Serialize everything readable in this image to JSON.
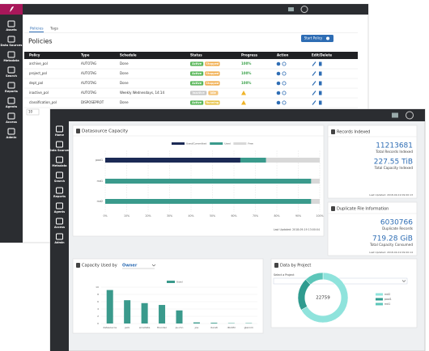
{
  "back": {
    "nav": [
      "Assets",
      "Data Sources",
      "Metadata",
      "Search",
      "Reports",
      "Agents",
      "Access",
      "Admin"
    ],
    "tabs": [
      "Policies",
      "Tags"
    ],
    "title": "Policies",
    "button": "Start Policy",
    "page_size": "10",
    "table": {
      "columns": [
        "Policy",
        "Type",
        "Schedule",
        "Status",
        "Progress",
        "Action",
        "Edit/Delete"
      ],
      "rows": [
        {
          "policy": "archive_pol",
          "type": "AUTOTAG",
          "schedule": "Done",
          "status": [
            {
              "text": "Active",
              "color": "#5cb85c"
            },
            {
              "text": "Stopped",
              "color": "#f0ad4e"
            }
          ],
          "progress": "100%"
        },
        {
          "policy": "project_pol",
          "type": "AUTOTAG",
          "schedule": "Done",
          "status": [
            {
              "text": "Active",
              "color": "#5cb85c"
            },
            {
              "text": "Stopped",
              "color": "#f0ad4e"
            }
          ],
          "progress": "100%"
        },
        {
          "policy": "dept_pol",
          "type": "AUTOTAG",
          "schedule": "Done",
          "status": [
            {
              "text": "Active",
              "color": "#5cb85c"
            },
            {
              "text": "Stopped",
              "color": "#f0ad4e"
            }
          ],
          "progress": "100%"
        },
        {
          "policy": "inactive_pol",
          "type": "AUTOTAG",
          "schedule": "Weekly Wednesdays, 14:14",
          "status": [
            {
              "text": "Inactive",
              "color": "#c8c8c8"
            },
            {
              "text": "Idle",
              "color": "#f3c37a"
            }
          ],
          "progress": null
        },
        {
          "policy": "classification_pol",
          "type": "DISPOSEPROT",
          "schedule": "Done",
          "status": [
            {
              "text": "Active",
              "color": "#5cb85c"
            },
            {
              "text": "Running",
              "color": "#e6c34a"
            }
          ],
          "progress": null
        }
      ]
    }
  },
  "front": {
    "nav": [
      "Home",
      "Data Sources",
      "Metadata",
      "Search",
      "Reports",
      "Agents",
      "Access",
      "Admin"
    ],
    "records": {
      "title": "Records Indexed",
      "count": "11213681",
      "count_label": "Total Records Indexed",
      "capacity": "227.55 TiB",
      "capacity_label": "Total Capacity Indexed",
      "updated": "Last Updated: 2018-09-19 09:00:13"
    },
    "duplicates": {
      "title": "Duplicate File Information",
      "count": "6030766",
      "count_label": "Duplicate Records",
      "capacity": "719.28 GiB",
      "capacity_label": "Total Capacity Consumed",
      "updated": "Last Updated: 2018-09-19 09:00:14"
    }
  },
  "chart_data": [
    {
      "type": "bar",
      "orientation": "horizontal",
      "stacked": true,
      "title": "Datasource Capacity",
      "categories": [
        "pool1",
        "rnd1",
        "rnd2"
      ],
      "series": [
        {
          "name": "Used/Committed",
          "color": "#1b2a55",
          "values": [
            63,
            0,
            0
          ]
        },
        {
          "name": "Used",
          "color": "#3a9a8c",
          "values": [
            12,
            96,
            96
          ]
        },
        {
          "name": "Free",
          "color": "#d8d8d8",
          "values": [
            25,
            4,
            4
          ]
        }
      ],
      "xlim": [
        0,
        100
      ],
      "xticks": [
        {
          "value": 0,
          "label": "0%"
        },
        {
          "value": 10,
          "label": "10%"
        },
        {
          "value": 20,
          "label": "20%"
        },
        {
          "value": 30,
          "label": "30%"
        },
        {
          "value": 40,
          "label": "40%"
        },
        {
          "value": 50,
          "label": "50%"
        },
        {
          "value": 60,
          "label": "60%"
        },
        {
          "value": 70,
          "label": "70%"
        },
        {
          "value": 80,
          "label": "80%"
        },
        {
          "value": 90,
          "label": "90%"
        },
        {
          "value": 100,
          "label": "100%"
        }
      ],
      "grid": true,
      "footer": "Last Updated: 2018-09-19 13:00:04"
    },
    {
      "type": "bar",
      "title": "Capacity Used by",
      "selector": "Owner",
      "categories": [
        "datasource",
        "jack",
        "annotate",
        "thunder",
        "pu-mn",
        "joe",
        "ducati",
        "dbnMir",
        "glennm"
      ],
      "series": [
        {
          "name": "Used",
          "color": "#3a9a8c",
          "values": [
            9.2,
            6.4,
            5.6,
            5.1,
            3.6,
            0.3,
            0.2,
            0.1,
            0.1
          ]
        }
      ],
      "ylim": [
        0,
        10
      ],
      "yticks": [
        0,
        2,
        4,
        6,
        8,
        10
      ],
      "grid": true
    },
    {
      "type": "pie",
      "title": "Data by Project",
      "selector_label": "Select a Project",
      "total": "22759",
      "categories": [
        "rnd2",
        "pool1",
        "rnd1"
      ],
      "values": [
        15200,
        4800,
        2759
      ],
      "colors": [
        "#8fe3dc",
        "#2f9b8f",
        "#5cc6b9"
      ],
      "hole": 0.72
    }
  ]
}
